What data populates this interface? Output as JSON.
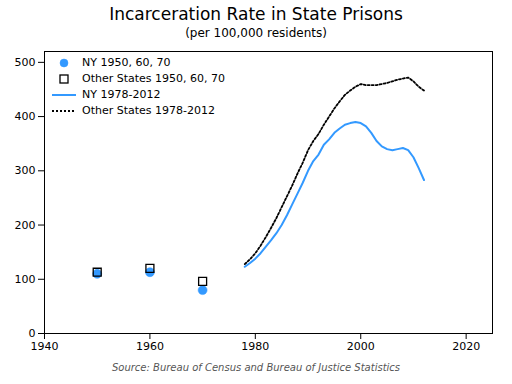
{
  "chart_data": {
    "type": "line",
    "title": "Incarceration Rate in State Prisons",
    "subtitle": "(per 100,000 residents)",
    "source": "Source: Bureau of Census and Bureau of Justice Statistics",
    "series": [
      {
        "name": "NY 1950, 60, 70",
        "type": "scatter",
        "color": "#3399ff",
        "marker": "circle",
        "x": [
          1950,
          1960,
          1970
        ],
        "values": [
          110,
          113,
          80
        ]
      },
      {
        "name": "Other States 1950, 60, 70",
        "type": "scatter",
        "color": "#000000",
        "marker": "open_square",
        "x": [
          1950,
          1960,
          1970
        ],
        "values": [
          113,
          120,
          96
        ]
      },
      {
        "name": "NY 1978-2012",
        "type": "line",
        "color": "#3399ff",
        "line_style": "solid",
        "x": [
          1978,
          1979,
          1980,
          1981,
          1982,
          1983,
          1984,
          1985,
          1986,
          1987,
          1988,
          1989,
          1990,
          1991,
          1992,
          1993,
          1994,
          1995,
          1996,
          1997,
          1998,
          1999,
          2000,
          2001,
          2002,
          2003,
          2004,
          2005,
          2006,
          2007,
          2008,
          2009,
          2010,
          2011,
          2012
        ],
        "values": [
          123,
          130,
          138,
          148,
          160,
          172,
          185,
          200,
          218,
          238,
          258,
          278,
          300,
          318,
          330,
          348,
          358,
          370,
          378,
          385,
          388,
          390,
          388,
          382,
          370,
          355,
          345,
          340,
          338,
          340,
          342,
          338,
          325,
          305,
          283
        ]
      },
      {
        "name": "Other States 1978-2012",
        "type": "line",
        "color": "#000000",
        "line_style": "dotted",
        "x": [
          1978,
          1979,
          1980,
          1981,
          1982,
          1983,
          1984,
          1985,
          1986,
          1987,
          1988,
          1989,
          1990,
          1991,
          1992,
          1993,
          1994,
          1995,
          1996,
          1997,
          1998,
          1999,
          2000,
          2001,
          2002,
          2003,
          2004,
          2005,
          2006,
          2007,
          2008,
          2009,
          2010,
          2011,
          2012
        ],
        "values": [
          128,
          137,
          148,
          162,
          178,
          195,
          213,
          233,
          253,
          273,
          295,
          315,
          338,
          355,
          368,
          385,
          400,
          415,
          428,
          440,
          448,
          455,
          460,
          458,
          458,
          458,
          460,
          462,
          465,
          468,
          470,
          472,
          465,
          455,
          448
        ]
      }
    ],
    "xlim": [
      1940,
      2025
    ],
    "ylim": [
      0,
      520
    ],
    "xticks": [
      1940,
      1960,
      1980,
      2000,
      2020
    ],
    "yticks": [
      0,
      100,
      200,
      300,
      400,
      500
    ],
    "grid": false,
    "legend": "upper left"
  }
}
